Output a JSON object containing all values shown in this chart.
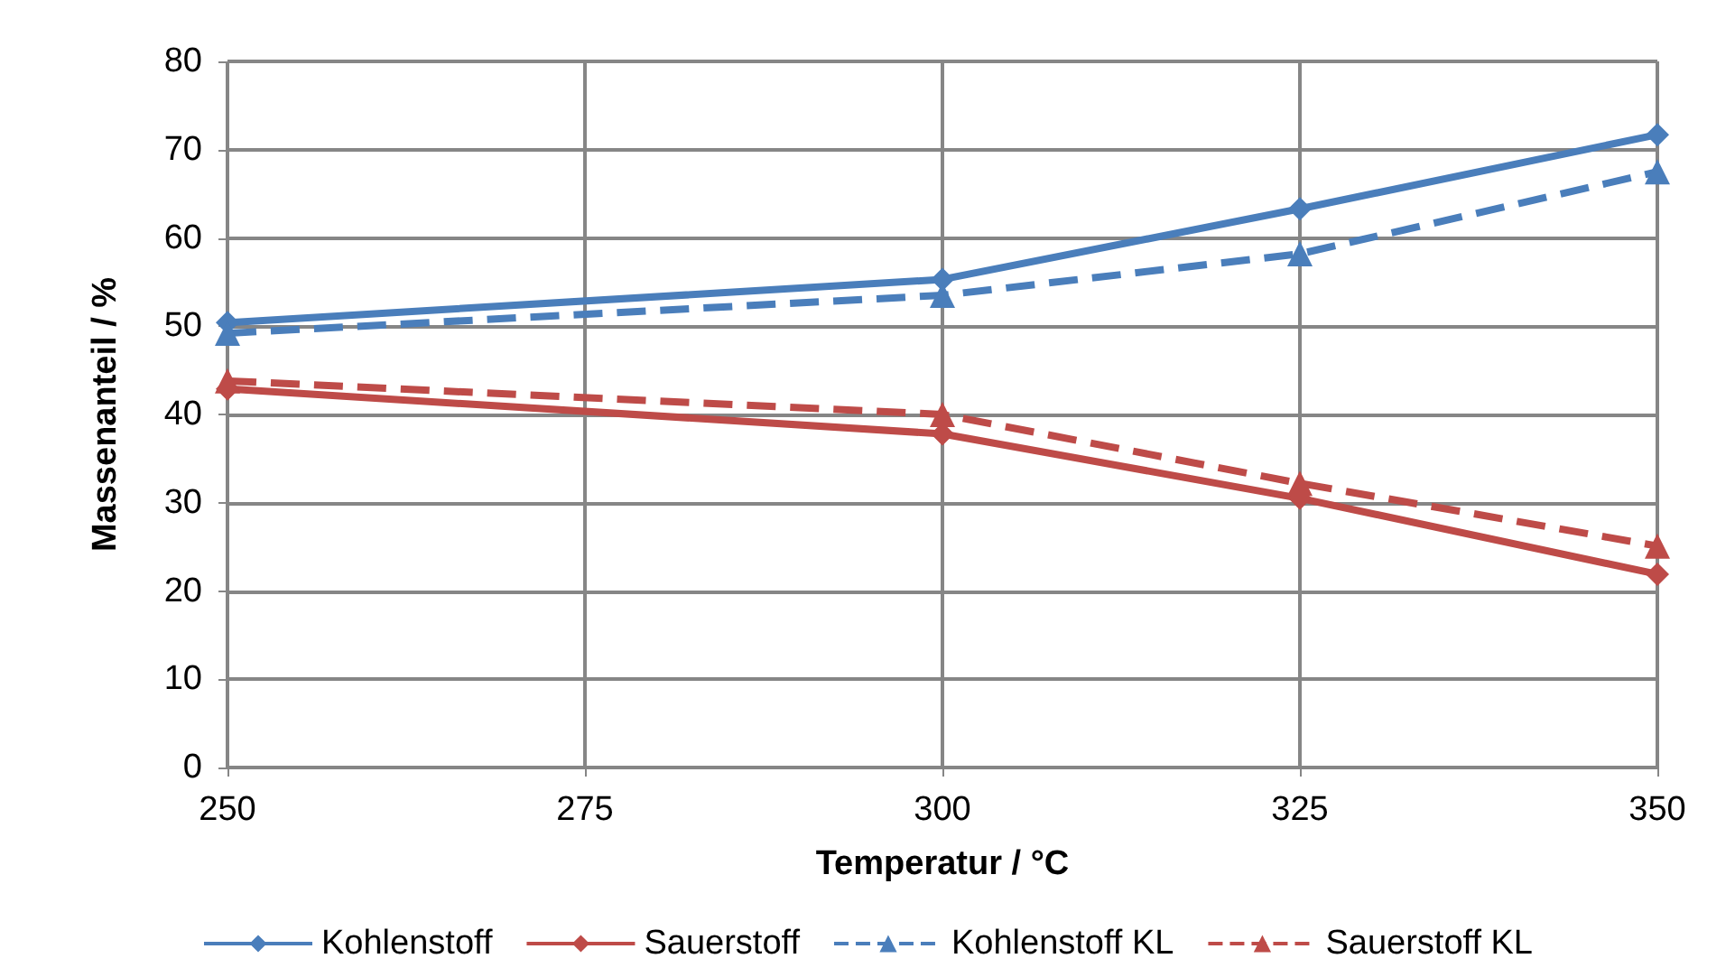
{
  "chart_data": {
    "type": "line",
    "xlabel": "Temperatur / °C",
    "ylabel": "Massenanteil / %",
    "x": [
      250,
      300,
      325,
      350
    ],
    "series": [
      {
        "name": "Kohlenstoff",
        "color": "#4a7ebb",
        "marker": "diamond",
        "line_style": "solid",
        "values": [
          50.4,
          55.3,
          63.3,
          71.7
        ]
      },
      {
        "name": "Sauerstoff",
        "color": "#be4b48",
        "marker": "diamond",
        "line_style": "solid",
        "values": [
          42.9,
          37.8,
          30.5,
          21.9
        ]
      },
      {
        "name": "Kohlenstoff KL",
        "color": "#4a7ebb",
        "marker": "triangle",
        "line_style": "dashed",
        "values": [
          49.2,
          53.5,
          58.2,
          67.5
        ]
      },
      {
        "name": "Sauerstoff KL",
        "color": "#be4b48",
        "marker": "triangle",
        "line_style": "dashed",
        "values": [
          43.8,
          40.0,
          32.2,
          25.1
        ]
      }
    ],
    "xlim": [
      250,
      350
    ],
    "xticks": [
      250,
      275,
      300,
      325,
      350
    ],
    "ylim": [
      0,
      80
    ],
    "yticks": [
      0,
      10,
      20,
      30,
      40,
      50,
      60,
      70,
      80
    ],
    "grid": true,
    "legend": "bottom"
  }
}
